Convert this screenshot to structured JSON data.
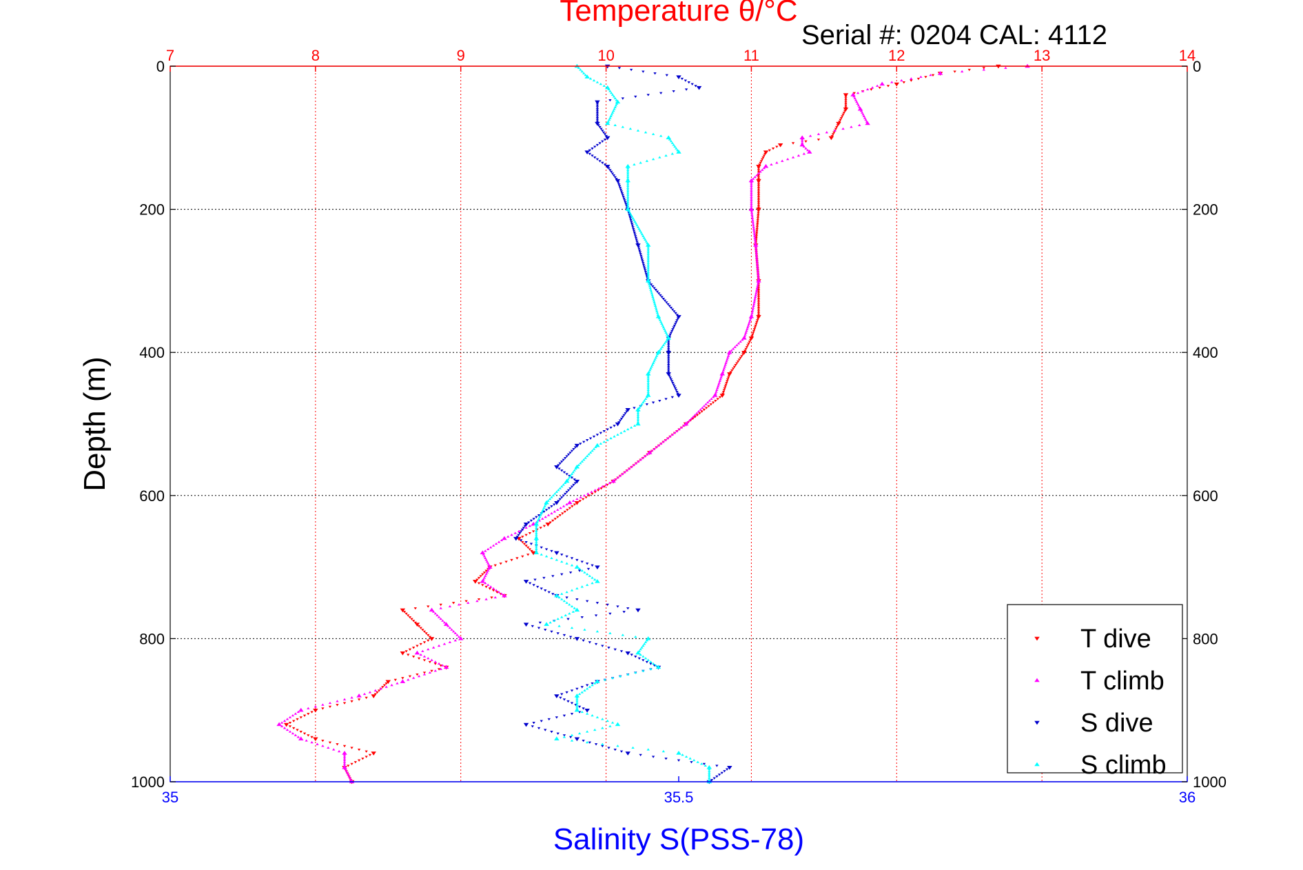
{
  "chart_data": {
    "type": "scatter",
    "title": "Temperature θ/°C",
    "annotation": "Serial #: 0204  CAL: 4112",
    "xlabel_bottom": "Salinity S(PSS-78)",
    "xlabel_top": "Temperature θ/°C",
    "ylabel": "Depth (m)",
    "x_bottom_range": [
      35,
      36
    ],
    "x_bottom_ticks": [
      {
        "value": 35,
        "label": "35"
      },
      {
        "value": 35.5,
        "label": "35.5"
      },
      {
        "value": 36,
        "label": "36"
      }
    ],
    "x_top_range": [
      7,
      14
    ],
    "x_top_ticks": [
      {
        "value": 7,
        "label": "7"
      },
      {
        "value": 8,
        "label": "8"
      },
      {
        "value": 9,
        "label": "9"
      },
      {
        "value": 10,
        "label": "10"
      },
      {
        "value": 11,
        "label": "11"
      },
      {
        "value": 12,
        "label": "12"
      },
      {
        "value": 13,
        "label": "13"
      },
      {
        "value": 14,
        "label": "14"
      }
    ],
    "y_range": [
      0,
      1000
    ],
    "y_reversed": true,
    "y_ticks": [
      {
        "value": 0,
        "label": "0"
      },
      {
        "value": 200,
        "label": "200"
      },
      {
        "value": 400,
        "label": "400"
      },
      {
        "value": 600,
        "label": "600"
      },
      {
        "value": 800,
        "label": "800"
      },
      {
        "value": 1000,
        "label": "1000"
      }
    ],
    "grid": true,
    "legend_position": "bottom-right",
    "colors": {
      "temperature_axis": "#ff0000",
      "salinity_axis": "#0000ff",
      "t_dive": "#ff0000",
      "t_climb": "#ff00ff",
      "s_dive": "#0000cc",
      "s_climb": "#00ffff"
    },
    "series": [
      {
        "name": "T dive",
        "axis": "temperature",
        "color": "#ff0000",
        "marker": "triangle-down",
        "depth": [
          0,
          10,
          25,
          40,
          60,
          80,
          100,
          110,
          120,
          140,
          160,
          200,
          250,
          300,
          350,
          380,
          400,
          430,
          460,
          500,
          540,
          580,
          610,
          640,
          660,
          680,
          700,
          720,
          740,
          760,
          780,
          800,
          820,
          840,
          860,
          880,
          900,
          920,
          940,
          960,
          980,
          1000
        ],
        "values": [
          12.7,
          12.3,
          12.0,
          11.65,
          11.65,
          11.6,
          11.55,
          11.2,
          11.1,
          11.05,
          11.05,
          11.05,
          11.03,
          11.05,
          11.05,
          11.0,
          10.95,
          10.85,
          10.8,
          10.55,
          10.3,
          10.05,
          9.8,
          9.6,
          9.4,
          9.5,
          9.2,
          9.1,
          9.3,
          8.6,
          8.7,
          8.8,
          8.6,
          8.9,
          8.5,
          8.4,
          8.0,
          7.8,
          8.0,
          8.4,
          8.2,
          8.25
        ]
      },
      {
        "name": "T climb",
        "axis": "temperature",
        "color": "#ff00ff",
        "marker": "triangle-up",
        "depth": [
          0,
          10,
          25,
          40,
          60,
          80,
          100,
          110,
          120,
          140,
          160,
          200,
          250,
          300,
          350,
          380,
          400,
          430,
          460,
          500,
          540,
          580,
          610,
          640,
          660,
          680,
          700,
          720,
          740,
          760,
          780,
          800,
          820,
          840,
          860,
          880,
          900,
          920,
          940,
          960,
          980,
          1000
        ],
        "values": [
          12.9,
          12.3,
          11.9,
          11.7,
          11.75,
          11.8,
          11.35,
          11.35,
          11.4,
          11.1,
          11.0,
          11.0,
          11.03,
          11.05,
          11.0,
          10.95,
          10.85,
          10.8,
          10.75,
          10.55,
          10.3,
          10.05,
          9.75,
          9.5,
          9.3,
          9.15,
          9.2,
          9.15,
          9.3,
          8.8,
          8.9,
          9.0,
          8.7,
          8.9,
          8.6,
          8.3,
          7.9,
          7.75,
          7.9,
          8.2,
          8.2,
          8.25
        ]
      },
      {
        "name": "S dive",
        "axis": "salinity",
        "color": "#0000cc",
        "marker": "triangle-down",
        "depth": [
          0,
          15,
          30,
          50,
          80,
          100,
          120,
          140,
          160,
          200,
          250,
          300,
          350,
          380,
          400,
          430,
          460,
          480,
          500,
          530,
          560,
          580,
          610,
          640,
          660,
          680,
          700,
          720,
          740,
          760,
          780,
          800,
          820,
          840,
          860,
          880,
          900,
          920,
          940,
          960,
          980,
          1000
        ],
        "values": [
          35.43,
          35.5,
          35.52,
          35.42,
          35.42,
          35.43,
          35.41,
          35.43,
          35.44,
          35.45,
          35.46,
          35.47,
          35.5,
          35.49,
          35.49,
          35.49,
          35.5,
          35.45,
          35.44,
          35.4,
          35.38,
          35.4,
          35.38,
          35.35,
          35.34,
          35.38,
          35.42,
          35.35,
          35.38,
          35.46,
          35.35,
          35.4,
          35.45,
          35.48,
          35.42,
          35.38,
          35.41,
          35.35,
          35.4,
          35.45,
          35.55,
          35.53
        ]
      },
      {
        "name": "S climb",
        "axis": "salinity",
        "color": "#00ffff",
        "marker": "triangle-up",
        "depth": [
          0,
          15,
          30,
          50,
          80,
          100,
          120,
          140,
          160,
          200,
          250,
          300,
          350,
          380,
          400,
          430,
          460,
          480,
          500,
          530,
          560,
          580,
          610,
          640,
          660,
          680,
          700,
          720,
          740,
          760,
          780,
          800,
          820,
          840,
          860,
          880,
          900,
          920,
          940,
          960,
          980,
          1000
        ],
        "values": [
          35.4,
          35.41,
          35.43,
          35.44,
          35.43,
          35.49,
          35.5,
          35.45,
          35.45,
          35.45,
          35.47,
          35.47,
          35.48,
          35.49,
          35.48,
          35.47,
          35.47,
          35.46,
          35.46,
          35.42,
          35.4,
          35.39,
          35.37,
          35.36,
          35.36,
          35.36,
          35.4,
          35.42,
          35.38,
          35.4,
          35.37,
          35.47,
          35.46,
          35.48,
          35.42,
          35.4,
          35.4,
          35.44,
          35.38,
          35.5,
          35.53,
          35.53
        ]
      }
    ]
  }
}
